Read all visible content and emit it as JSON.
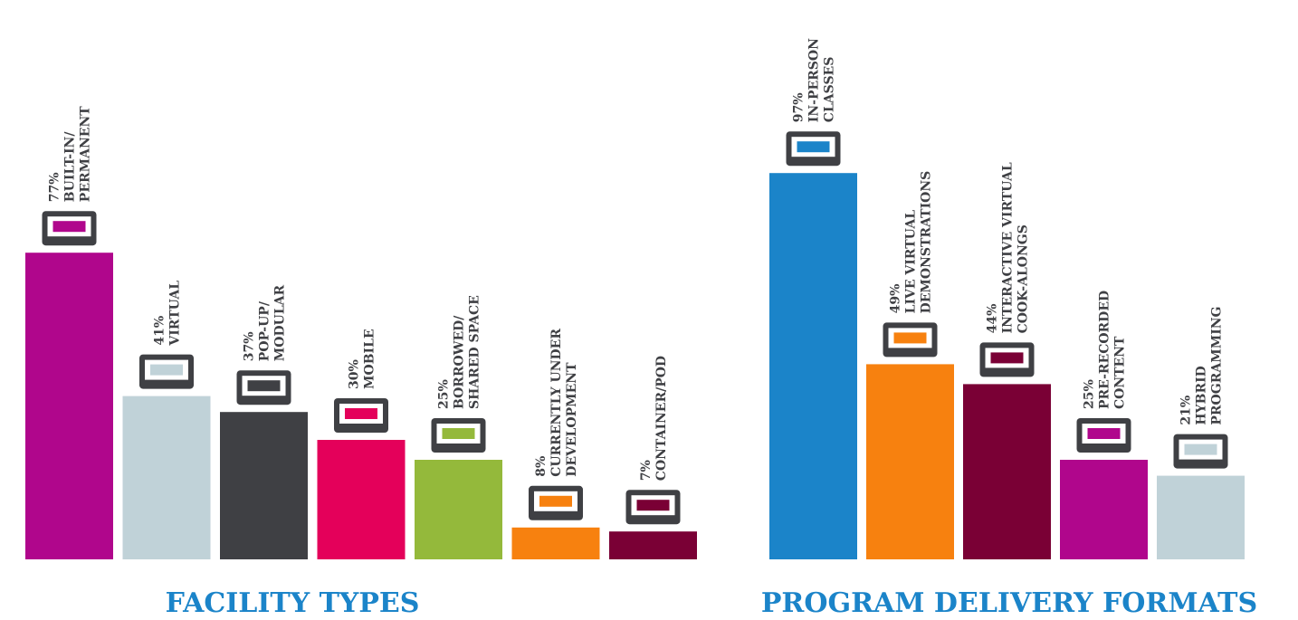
{
  "chart_data": [
    {
      "type": "bar",
      "title": "FACILITY TYPES",
      "categories": [
        "BUILT-IN/\nPERMANENT",
        "VIRTUAL",
        "POP-UP/\nMODULAR",
        "MOBILE",
        "BORROWED/\nSHARED SPACE",
        "CURRENTLY UNDER\nDEVELOPMENT",
        "CONTAINER/POD"
      ],
      "values": [
        77,
        41,
        37,
        30,
        25,
        8,
        7
      ],
      "value_labels": [
        "77%",
        "41%",
        "37%",
        "30%",
        "25%",
        "8%",
        "7%"
      ],
      "colors": [
        "#b0068c",
        "#c0d2d8",
        "#3f4044",
        "#e4005a",
        "#94b93b",
        "#f7810f",
        "#7a0035"
      ]
    },
    {
      "type": "bar",
      "title": "PROGRAM DELIVERY FORMATS",
      "categories": [
        "IN-PERSON\nCLASSES",
        "LIVE VIRTUAL\nDEMONSTRATIONS",
        "INTERACTIVE VIRTUAL\nCOOK-ALONGS",
        "PRE-RECORDED\nCONTENT",
        "HYBRID\nPROGRAMMING"
      ],
      "values": [
        97,
        49,
        44,
        25,
        21
      ],
      "value_labels": [
        "97%",
        "49%",
        "44%",
        "25%",
        "21%"
      ],
      "colors": [
        "#1b84c9",
        "#f7810f",
        "#7a0035",
        "#b0068c",
        "#c0d2d8"
      ]
    }
  ]
}
